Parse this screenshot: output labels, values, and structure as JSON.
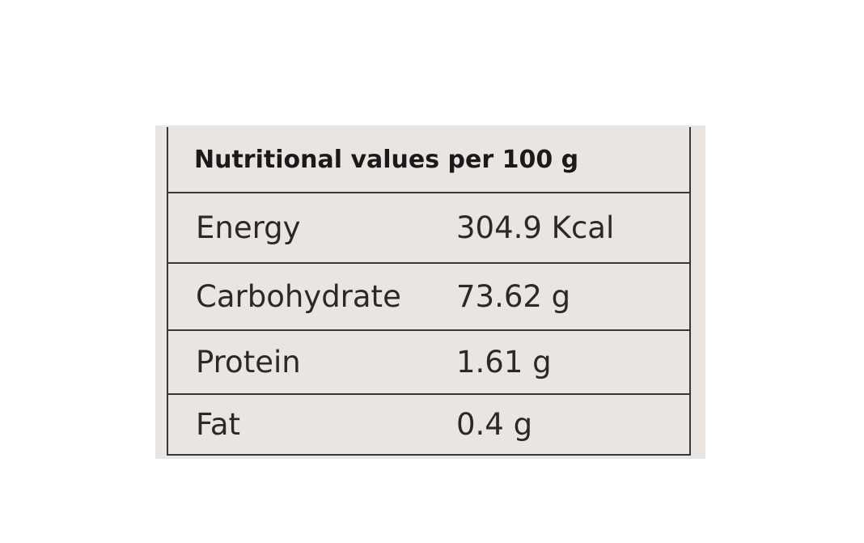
{
  "table": {
    "title": "Nutritional values per 100 g",
    "rows": [
      [
        "Energy",
        "304.9 Kcal"
      ],
      [
        "Carbohydrate",
        "73.62 g"
      ],
      [
        "Protein",
        "1.61 g"
      ],
      [
        "Fat",
        "0.4 g"
      ]
    ]
  }
}
